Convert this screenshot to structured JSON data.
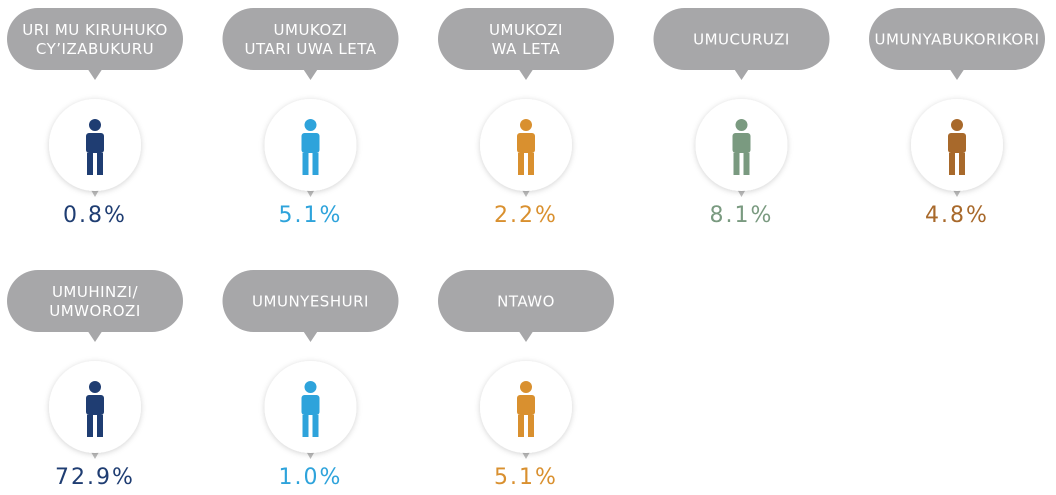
{
  "items": [
    {
      "label": [
        "URI MU KIRUHUKO",
        "CY’IZABUKURU"
      ],
      "value": "0.8%",
      "color": "#1f3d72"
    },
    {
      "label": [
        "UMUKOZI",
        "UTARI UWA LETA"
      ],
      "value": "5.1%",
      "color": "#2ea3db"
    },
    {
      "label": [
        "UMUKOZI",
        "WA LETA"
      ],
      "value": "2.2%",
      "color": "#d9902f"
    },
    {
      "label": [
        "UMUCURUZI"
      ],
      "value": "8.1%",
      "color": "#7a9a80"
    },
    {
      "label": [
        "UMUNYABUKORIKORI"
      ],
      "value": "4.8%",
      "color": "#a8692b"
    },
    {
      "label": [
        "UMUHINZI/",
        "UMWOROZI"
      ],
      "value": "72.9%",
      "color": "#1f3d72"
    },
    {
      "label": [
        "UMUNYESHURI"
      ],
      "value": "1.0%",
      "color": "#2ea3db"
    },
    {
      "label": [
        "NTAWO"
      ],
      "value": "5.1%",
      "color": "#d9902f"
    }
  ]
}
